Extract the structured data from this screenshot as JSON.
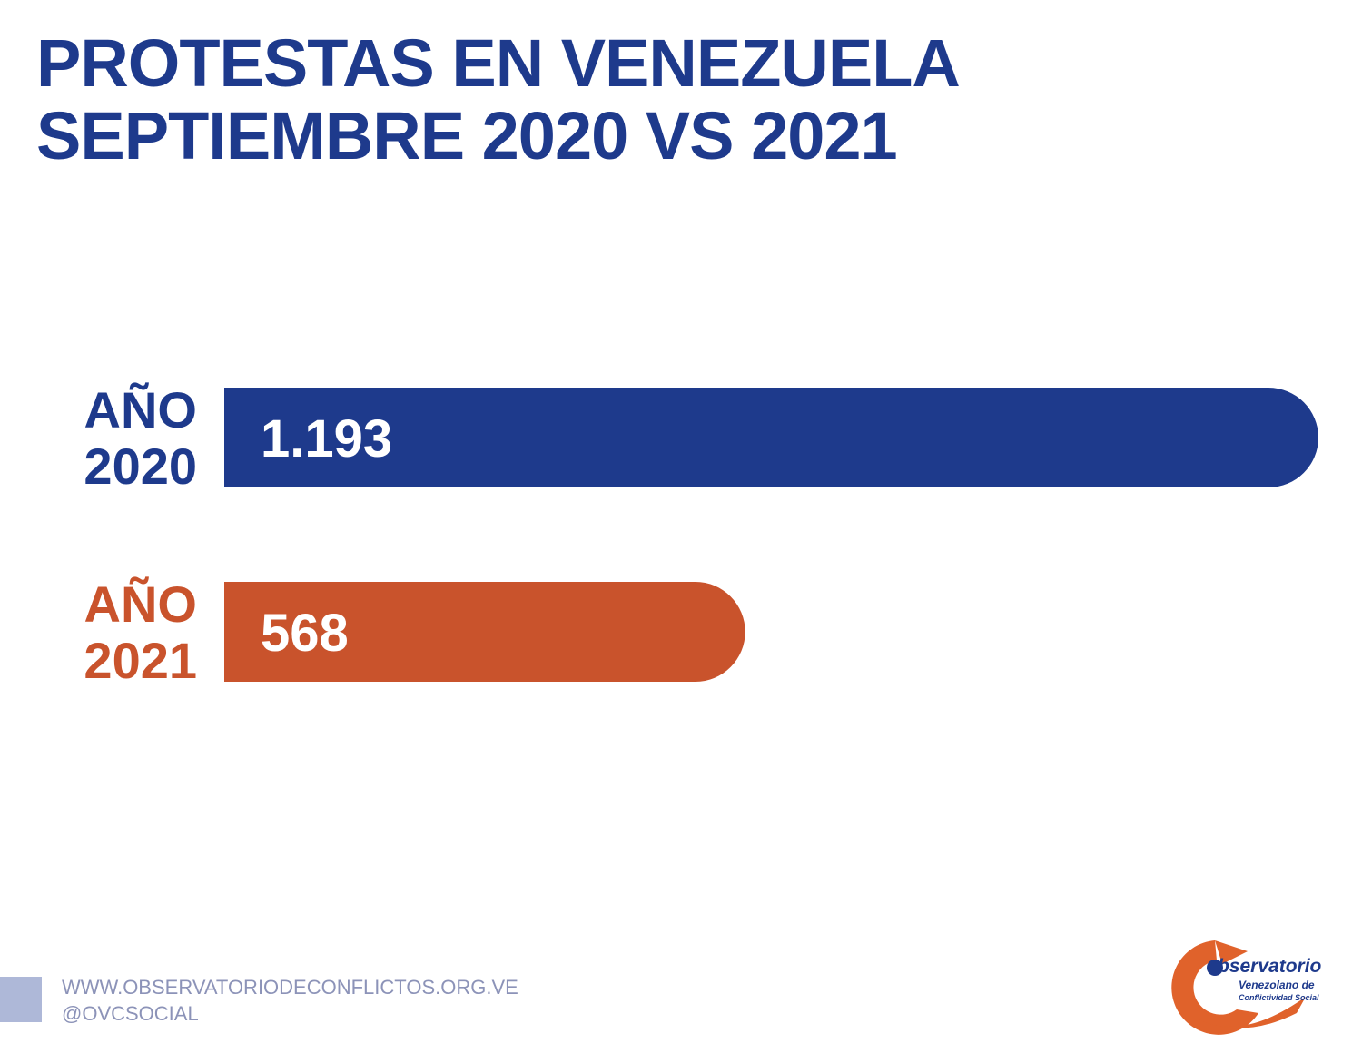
{
  "title": {
    "line1": "PROTESTAS EN VENEZUELA",
    "line2": "SEPTIEMBRE 2020 VS 2021"
  },
  "chart_data": {
    "type": "bar",
    "orientation": "horizontal",
    "title": "PROTESTAS EN VENEZUELA SEPTIEMBRE 2020 VS 2021",
    "categories": [
      {
        "line1": "AÑO",
        "line2": "2020"
      },
      {
        "line1": "AÑO",
        "line2": "2021"
      }
    ],
    "values": [
      1193,
      568
    ],
    "value_labels": [
      "1.193",
      "568"
    ],
    "colors": [
      "#1e3a8c",
      "#c9532c"
    ],
    "grid": false,
    "legend": "none"
  },
  "footer": {
    "url": "WWW.OBSERVATORIODECONFLICTOS.ORG.VE",
    "handle": "@OVCSOCIAL"
  },
  "logo": {
    "name": "bservatorio",
    "line2": "Venezolano de",
    "line3": "Conflictividad Social",
    "colors": [
      "#e0622b",
      "#1e3a8c"
    ]
  }
}
